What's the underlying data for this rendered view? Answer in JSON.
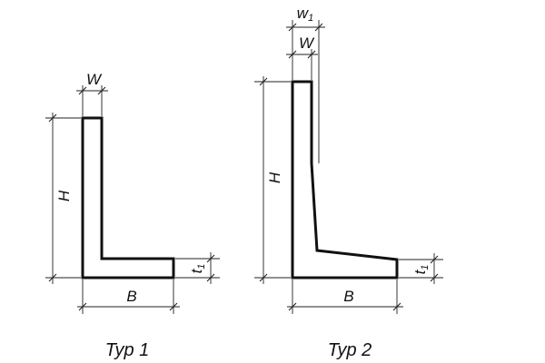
{
  "figures": [
    {
      "caption": "Typ 1",
      "dimensions": {
        "width": "W",
        "height": "H",
        "base": "B",
        "toe": {
          "base": "t",
          "sub": "1"
        }
      }
    },
    {
      "caption": "Typ 2",
      "dimensions": {
        "top_width": {
          "base": "w",
          "sub": "1"
        },
        "width": "W",
        "height": "H",
        "base": "B",
        "toe": {
          "base": "t",
          "sub": "1"
        }
      }
    }
  ]
}
